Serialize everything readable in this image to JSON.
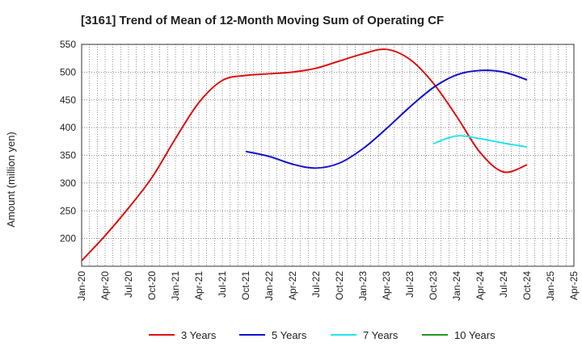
{
  "chart_data": {
    "type": "line",
    "title": "[3161]  Trend of Mean of 12-Month Moving Sum of Operating CF",
    "xlabel": "",
    "ylabel": "Amount (million yen)",
    "ylim": [
      150,
      550
    ],
    "yticks": [
      200,
      250,
      300,
      350,
      400,
      450,
      500,
      550
    ],
    "xlim": [
      "2020-01",
      "2025-04"
    ],
    "xticks": [
      "Jan-20",
      "Apr-20",
      "Jul-20",
      "Oct-20",
      "Jan-21",
      "Apr-21",
      "Jul-21",
      "Oct-21",
      "Jan-22",
      "Apr-22",
      "Jul-22",
      "Oct-22",
      "Jan-23",
      "Apr-23",
      "Jul-23",
      "Oct-23",
      "Jan-24",
      "Apr-24",
      "Jul-24",
      "Oct-24",
      "Jan-25",
      "Apr-25"
    ],
    "grid": true,
    "legend_position": "bottom",
    "series": [
      {
        "name": "3 Years",
        "color": "#dd1111",
        "points": [
          [
            "2020-01",
            160
          ],
          [
            "2020-04",
            205
          ],
          [
            "2020-07",
            255
          ],
          [
            "2020-10",
            310
          ],
          [
            "2021-01",
            380
          ],
          [
            "2021-04",
            445
          ],
          [
            "2021-07",
            485
          ],
          [
            "2021-10",
            494
          ],
          [
            "2022-01",
            497
          ],
          [
            "2022-04",
            500
          ],
          [
            "2022-07",
            507
          ],
          [
            "2022-10",
            520
          ],
          [
            "2023-01",
            533
          ],
          [
            "2023-04",
            541
          ],
          [
            "2023-07",
            523
          ],
          [
            "2023-10",
            480
          ],
          [
            "2024-01",
            420
          ],
          [
            "2024-04",
            355
          ],
          [
            "2024-07",
            320
          ],
          [
            "2024-10",
            333
          ]
        ]
      },
      {
        "name": "5 Years",
        "color": "#1111cc",
        "points": [
          [
            "2021-10",
            357
          ],
          [
            "2022-01",
            348
          ],
          [
            "2022-04",
            334
          ],
          [
            "2022-07",
            327
          ],
          [
            "2022-10",
            336
          ],
          [
            "2023-01",
            362
          ],
          [
            "2023-04",
            398
          ],
          [
            "2023-07",
            437
          ],
          [
            "2023-10",
            472
          ],
          [
            "2024-01",
            495
          ],
          [
            "2024-04",
            503
          ],
          [
            "2024-07",
            500
          ],
          [
            "2024-10",
            486
          ]
        ]
      },
      {
        "name": "7 Years",
        "color": "#22e5ee",
        "points": [
          [
            "2023-10",
            371
          ],
          [
            "2024-01",
            385
          ],
          [
            "2024-04",
            380
          ],
          [
            "2024-07",
            372
          ],
          [
            "2024-10",
            365
          ]
        ]
      },
      {
        "name": "10 Years",
        "color": "#229922",
        "points": []
      }
    ]
  }
}
